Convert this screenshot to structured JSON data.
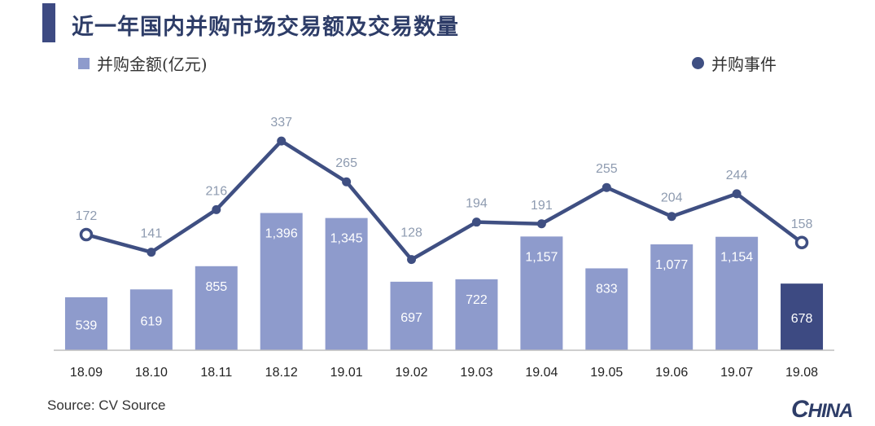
{
  "header": {
    "title": "近一年国内并购市场交易额及交易数量"
  },
  "legend": {
    "bar_label": "并购金额(亿元)",
    "line_label": "并购事件"
  },
  "footer": {
    "source": "Source: CV Source",
    "logo_text": "HINA"
  },
  "colors": {
    "bar": "#8e9bcc",
    "bar_highlight": "#3d4a82",
    "line": "#3f4f82",
    "title_bar": "#3d4a82",
    "bar_label": "#ffffff",
    "line_label": "#8e9bb0",
    "axis": "#bfbfbf"
  },
  "chart_data": {
    "type": "bar",
    "categories": [
      "18.09",
      "18.10",
      "18.11",
      "18.12",
      "19.01",
      "19.02",
      "19.03",
      "19.04",
      "19.05",
      "19.06",
      "19.07",
      "19.08"
    ],
    "series": [
      {
        "name": "并购金额(亿元)",
        "type": "bar",
        "values": [
          539,
          619,
          855,
          1396,
          1345,
          697,
          722,
          1157,
          833,
          1077,
          1154,
          678
        ],
        "labels": [
          "539",
          "619",
          "855",
          "1,396",
          "1,345",
          "697",
          "722",
          "1,157",
          "833",
          "1,077",
          "1,154",
          "678"
        ]
      },
      {
        "name": "并购事件",
        "type": "line",
        "values": [
          172,
          141,
          216,
          337,
          265,
          128,
          194,
          191,
          255,
          204,
          244,
          158
        ],
        "labels": [
          "172",
          "141",
          "216",
          "337",
          "265",
          "128",
          "194",
          "191",
          "255",
          "204",
          "244",
          "158"
        ]
      }
    ],
    "highlight_index": 11,
    "hollow_marker_indices": [
      0,
      11
    ],
    "legend_position": "top"
  }
}
